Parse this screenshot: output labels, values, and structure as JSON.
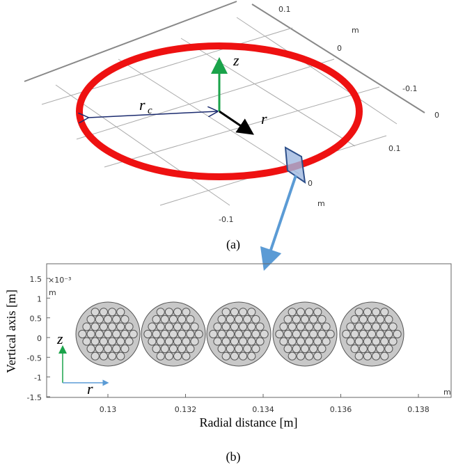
{
  "figure_a": {
    "caption": "(a)",
    "z_label": "z",
    "r_label": "r",
    "rc_label": "r",
    "rc_subscript": "c",
    "tick_labels": [
      "0.1",
      "m",
      "0",
      "-0.1",
      "0",
      "0.1",
      "0",
      "m",
      "-0.1"
    ]
  },
  "figure_b": {
    "caption": "(b)",
    "y_axis_label": "Vertical axis [m]",
    "x_axis_label": "Radial distance [m]",
    "y_exponent": "×10⁻³",
    "y_unit": "m",
    "x_unit": "m",
    "y_tick_labels": [
      "1.5",
      "1",
      "0.5",
      "0",
      "-0.5",
      "-1",
      "-1.5"
    ],
    "x_tick_labels": [
      "0.13",
      "0.132",
      "0.134",
      "0.136",
      "0.138"
    ],
    "z_label": "z",
    "r_label": "r"
  }
}
